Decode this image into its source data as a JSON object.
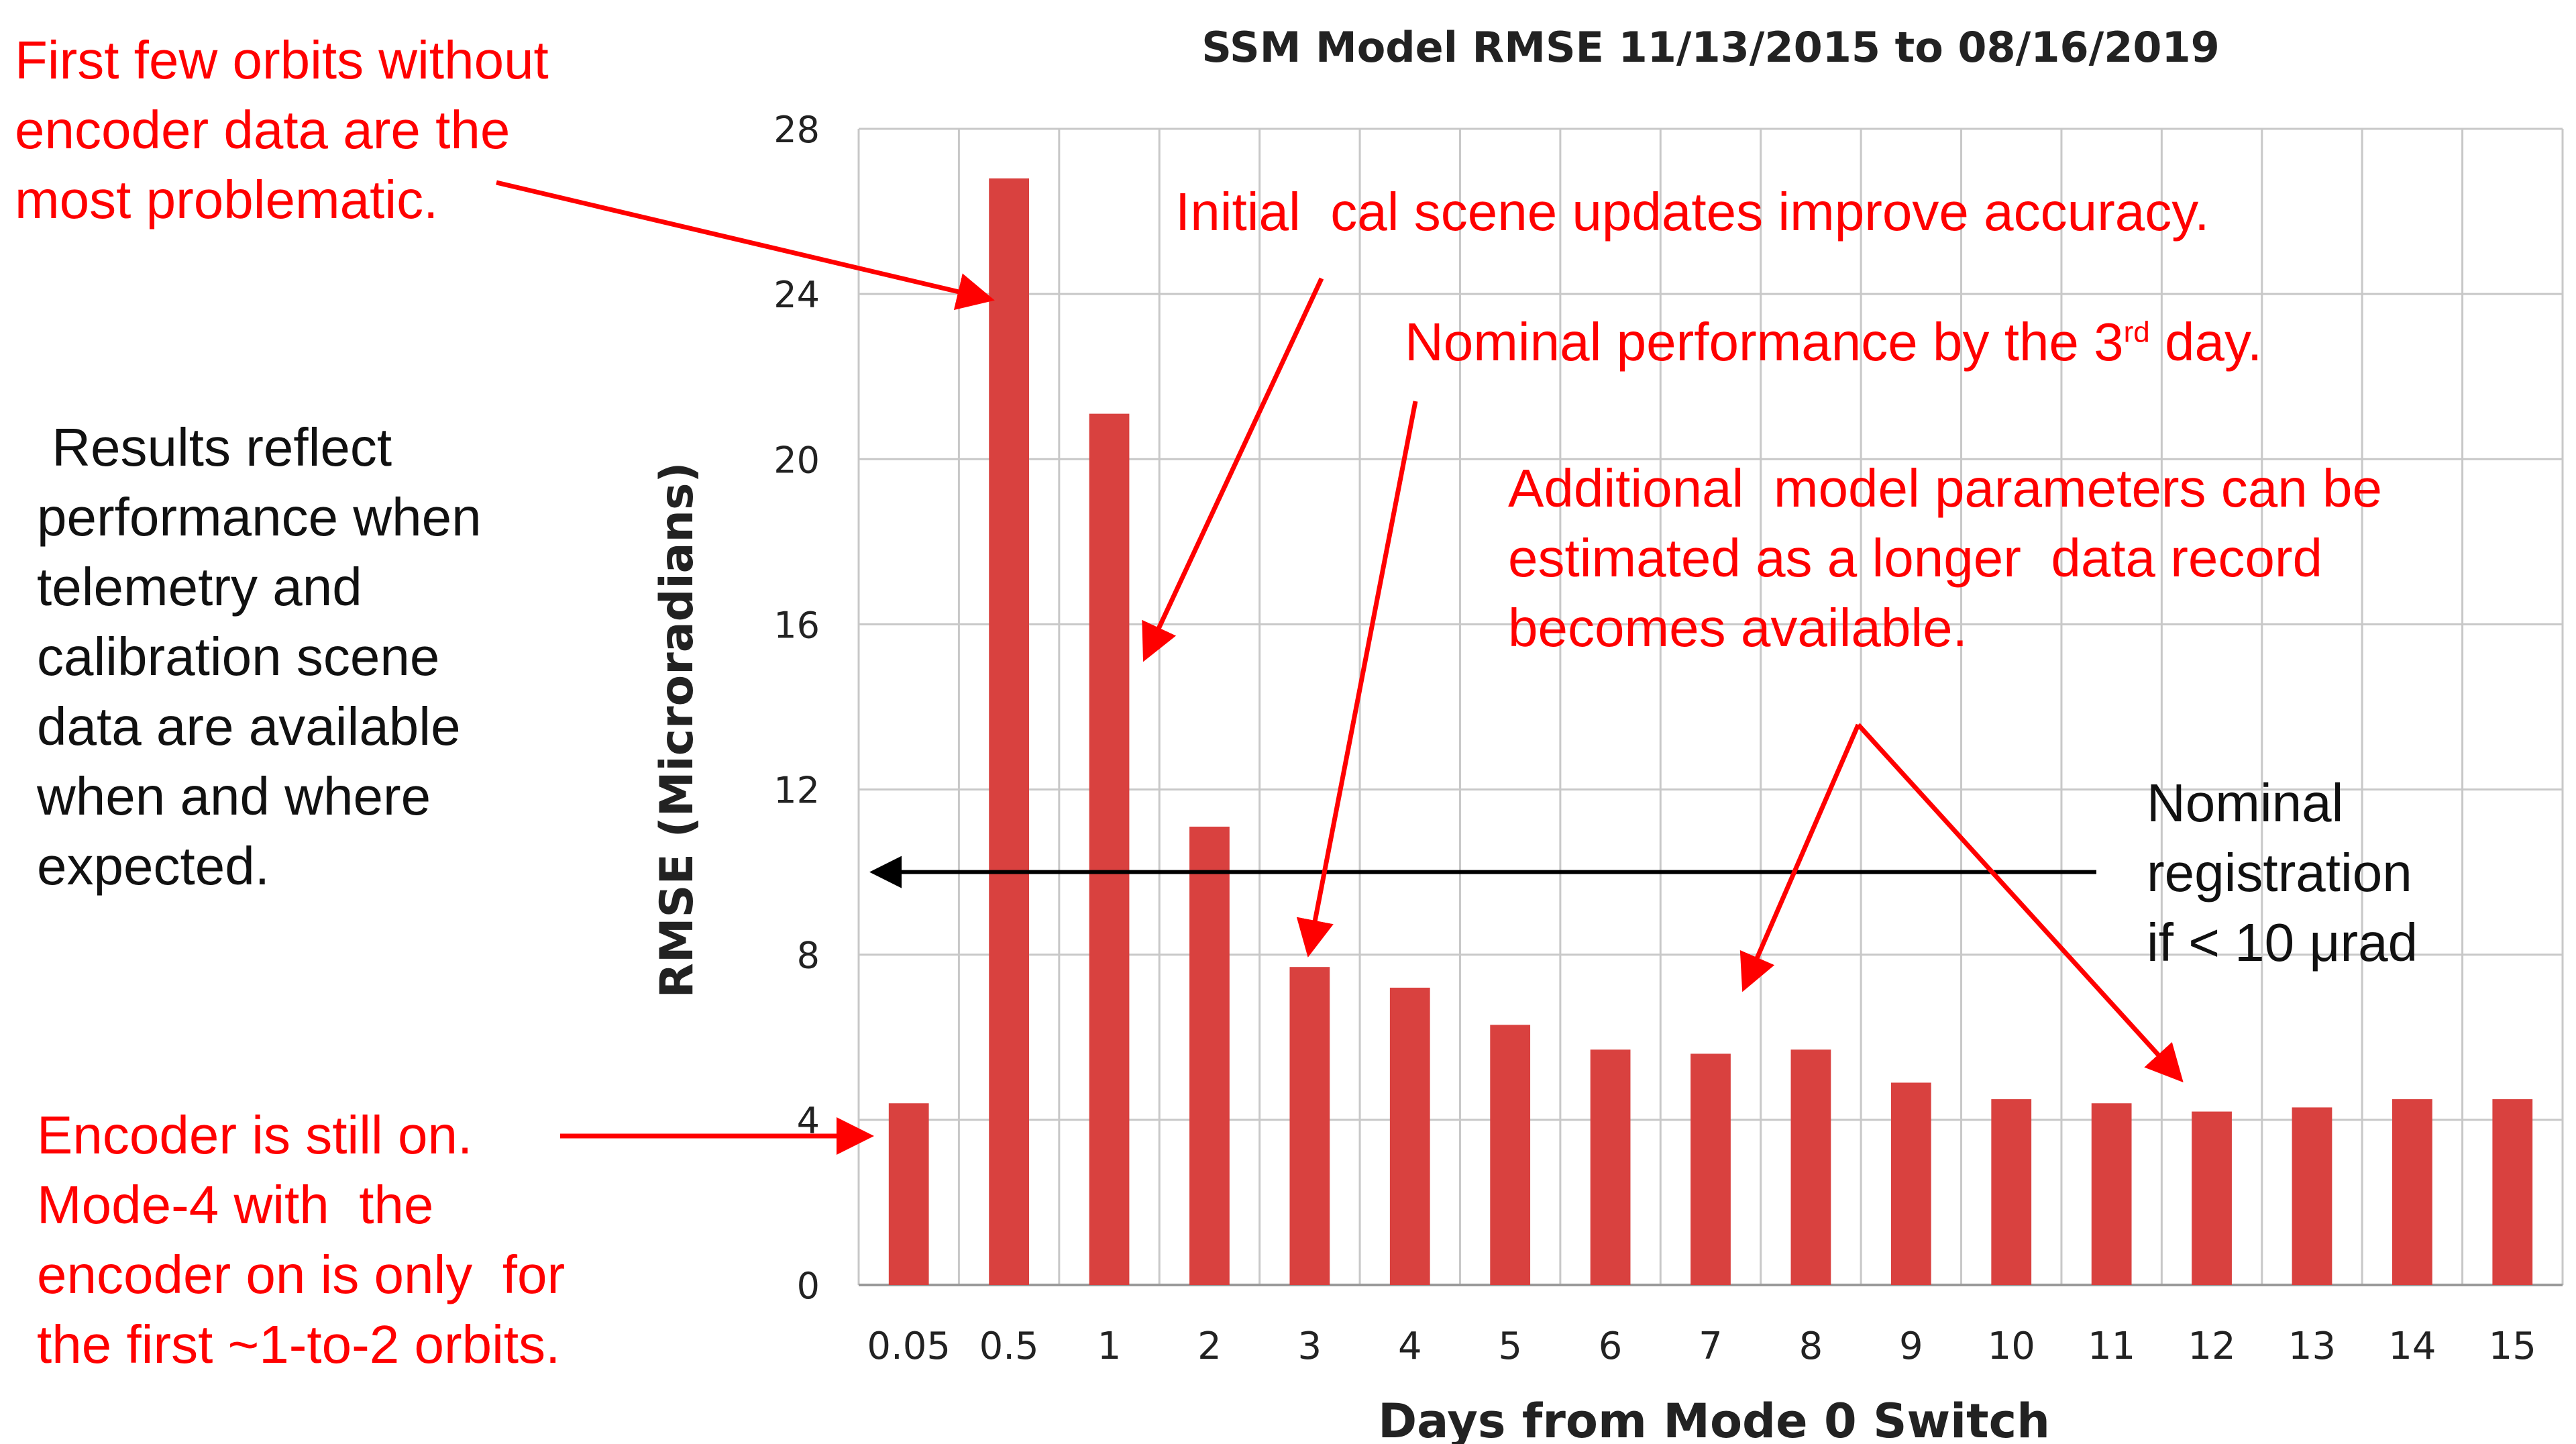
{
  "chart_data": {
    "type": "bar",
    "title": "SSM Model RMSE 11/13/2015 to 08/16/2019",
    "xlabel": "Days from Mode 0 Switch",
    "ylabel": "RMSE (Microradians)",
    "ylim": [
      0,
      28
    ],
    "yticks": [
      "0",
      "4",
      "8",
      "12",
      "16",
      "20",
      "24",
      "28"
    ],
    "grid": true,
    "categories": [
      "0.05",
      "0.5",
      "1",
      "2",
      "3",
      "4",
      "5",
      "6",
      "7",
      "8",
      "9",
      "10",
      "11",
      "12",
      "13",
      "14",
      "15"
    ],
    "values": [
      4.4,
      26.8,
      21.1,
      11.1,
      7.7,
      7.2,
      6.3,
      5.7,
      5.6,
      5.7,
      4.9,
      4.5,
      4.4,
      4.2,
      4.3,
      4.5,
      4.5
    ],
    "bar_color": "#d9413f",
    "reference_line": {
      "value": 10
    }
  },
  "annotations": {
    "first_orbits": "First few orbits without\nencoder data are the\nmost problematic.",
    "results": " Results reflect\nperformance when\ntelemetry and\ncalibration scene\ndata are available\nwhen and where\nexpected.",
    "encoder_on": "Encoder is still on.\nMode-4 with  the\nencoder on is only  for\nthe first ~1-to-2 orbits.",
    "initial_cal": "Initial  cal scene updates improve accuracy.",
    "nominal_perf": "Nominal performance by the 3",
    "nominal_perf_sup": "rd",
    "nominal_perf_end": " day.",
    "additional_params": "Additional  model parameters can be\nestimated as a longer  data record\nbecomes available.",
    "nominal_reg": "Nominal\nregistration\nif < 10 μrad"
  },
  "colors": {
    "annotation_red": "#ff0000",
    "arrow_black": "#000000"
  }
}
